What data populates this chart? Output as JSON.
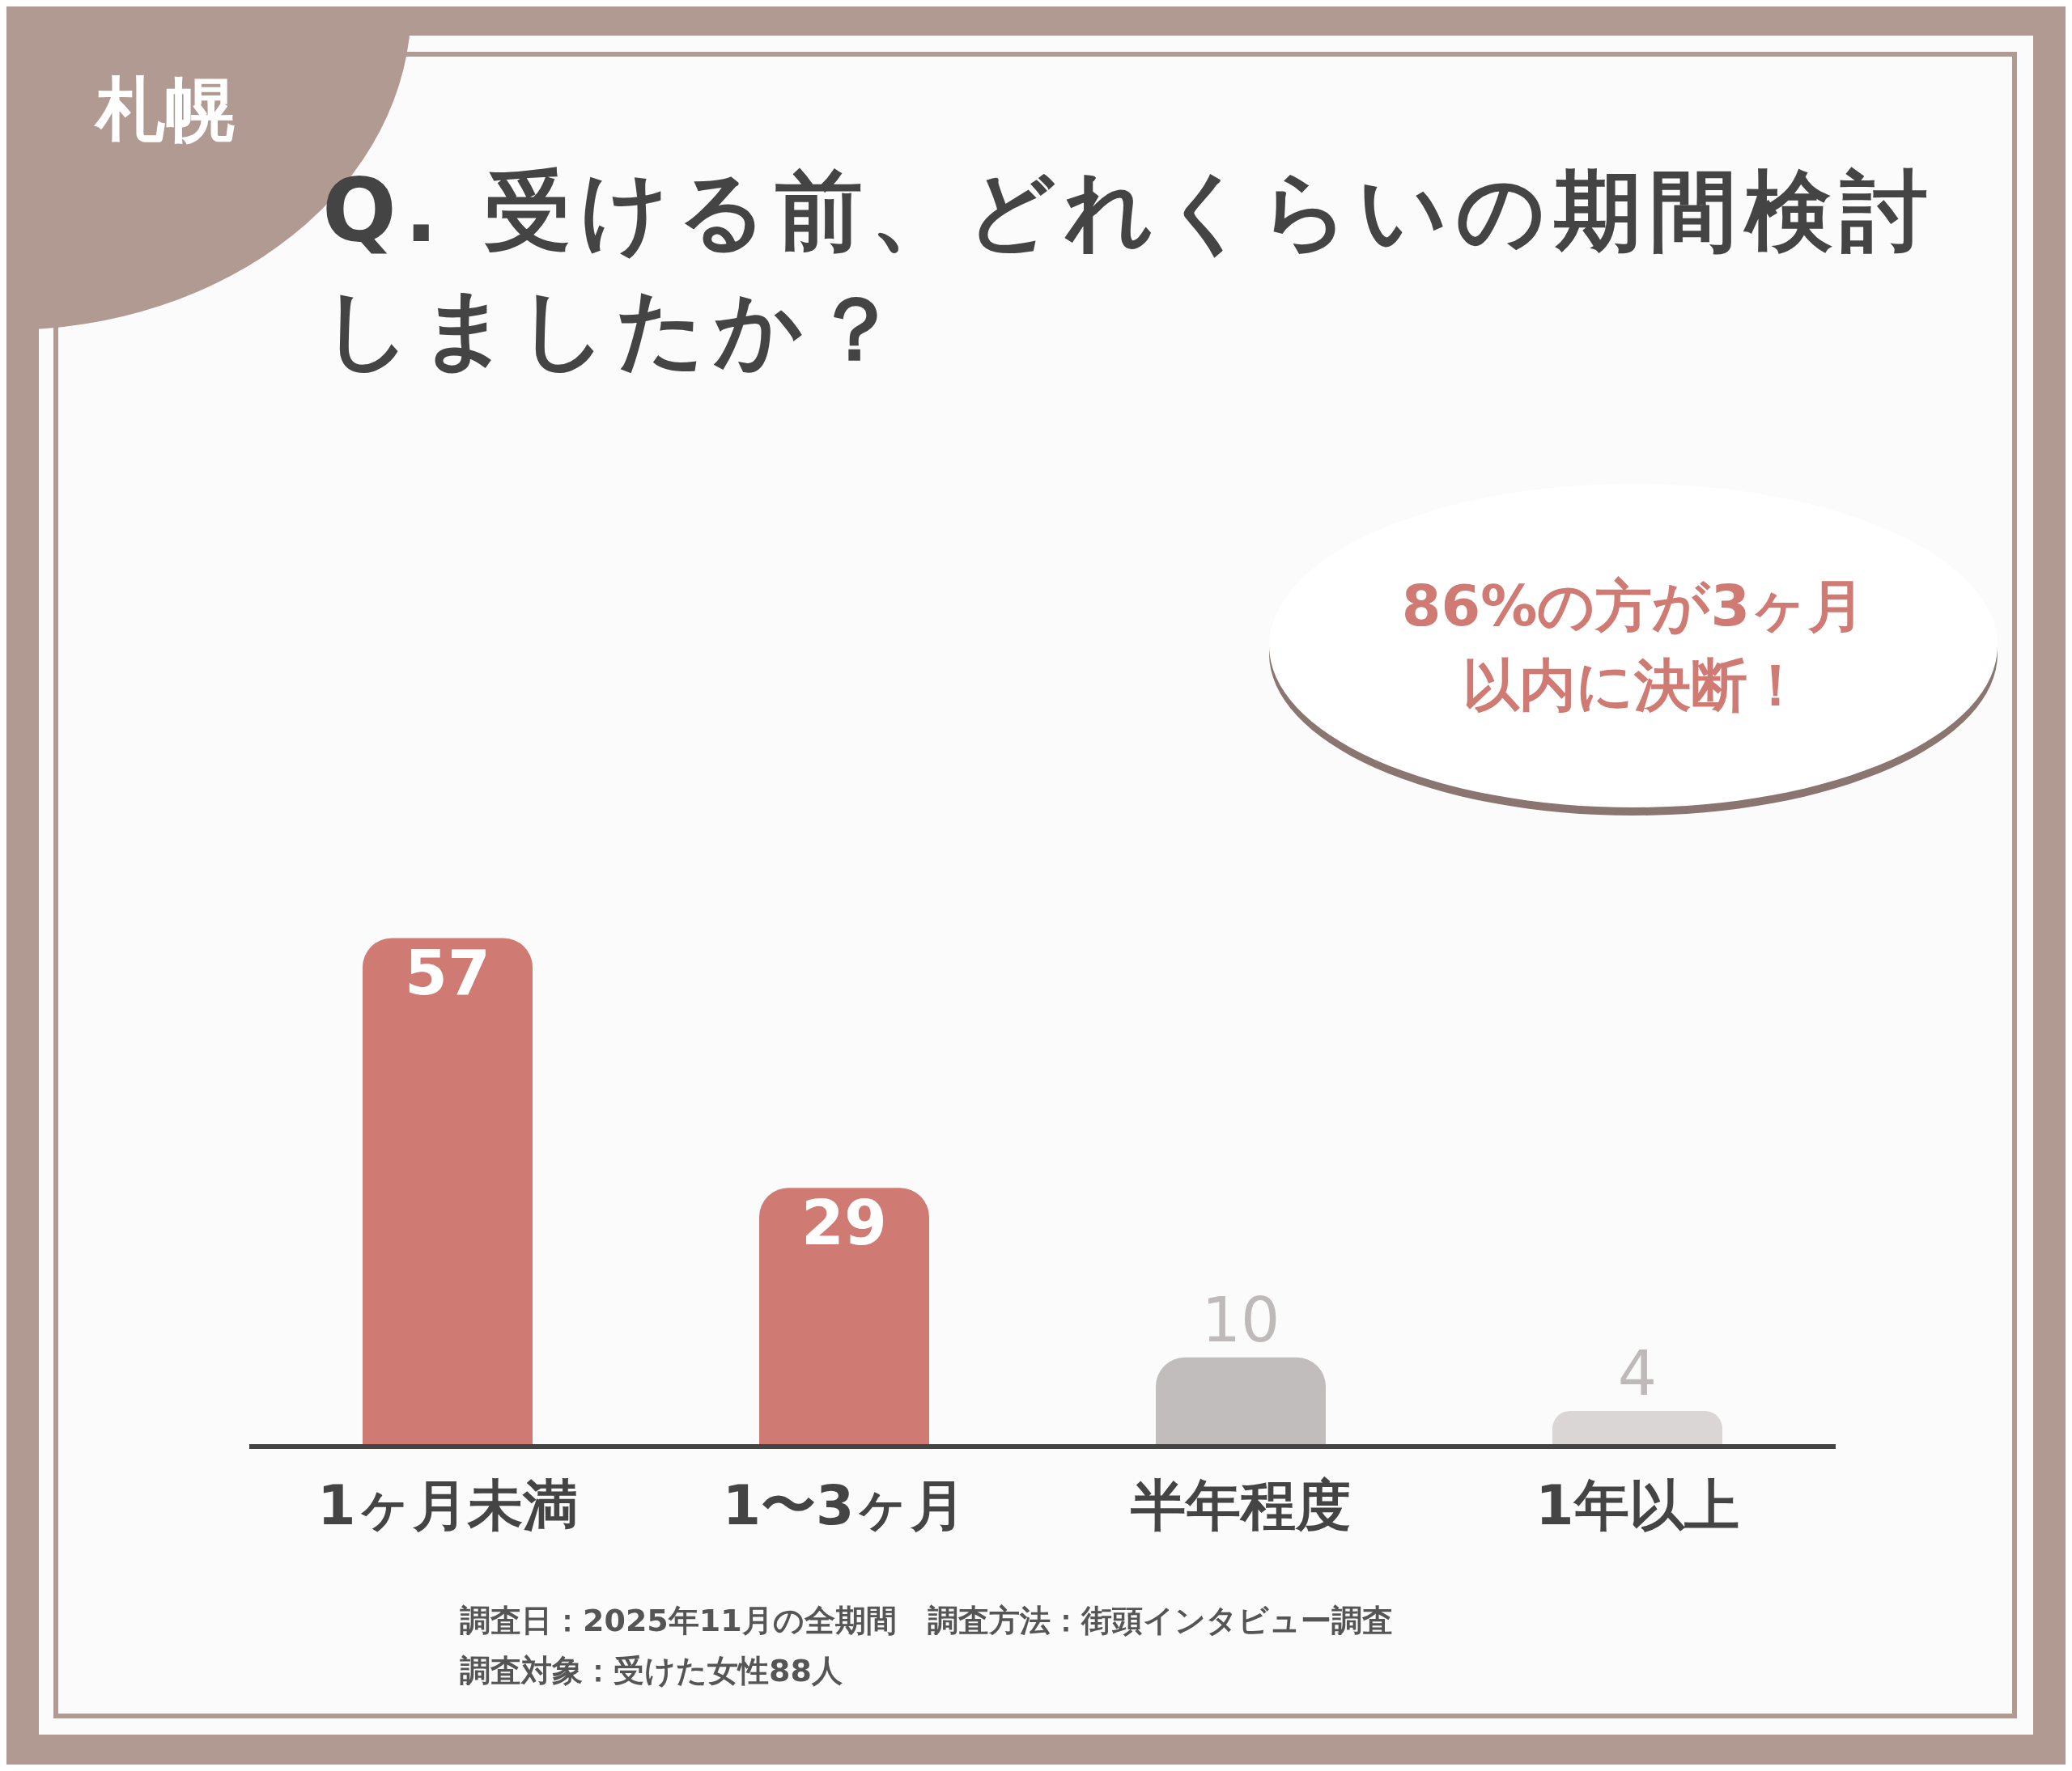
{
  "chart_data": {
    "type": "bar",
    "subtitle": "札幌",
    "title": "Q. 受ける前、どれくらいの期間検討しましたか？",
    "categories": [
      "1ヶ月未満",
      "1〜3ヶ月",
      "半年程度",
      "1年以上"
    ],
    "values": [
      57,
      29,
      10,
      4
    ],
    "colors": [
      "#d07a74",
      "#d07a74",
      "#c0bdbc",
      "#d9d6d5"
    ],
    "data_labels": true,
    "grid": false,
    "legend": false,
    "annotations": [
      "86%の方が3ヶ月以内に決断！",
      "調査日：2025年11月の全期間　調査方法：街頭インタビュー調査",
      "調査対象：受けた女性88人"
    ]
  }
}
